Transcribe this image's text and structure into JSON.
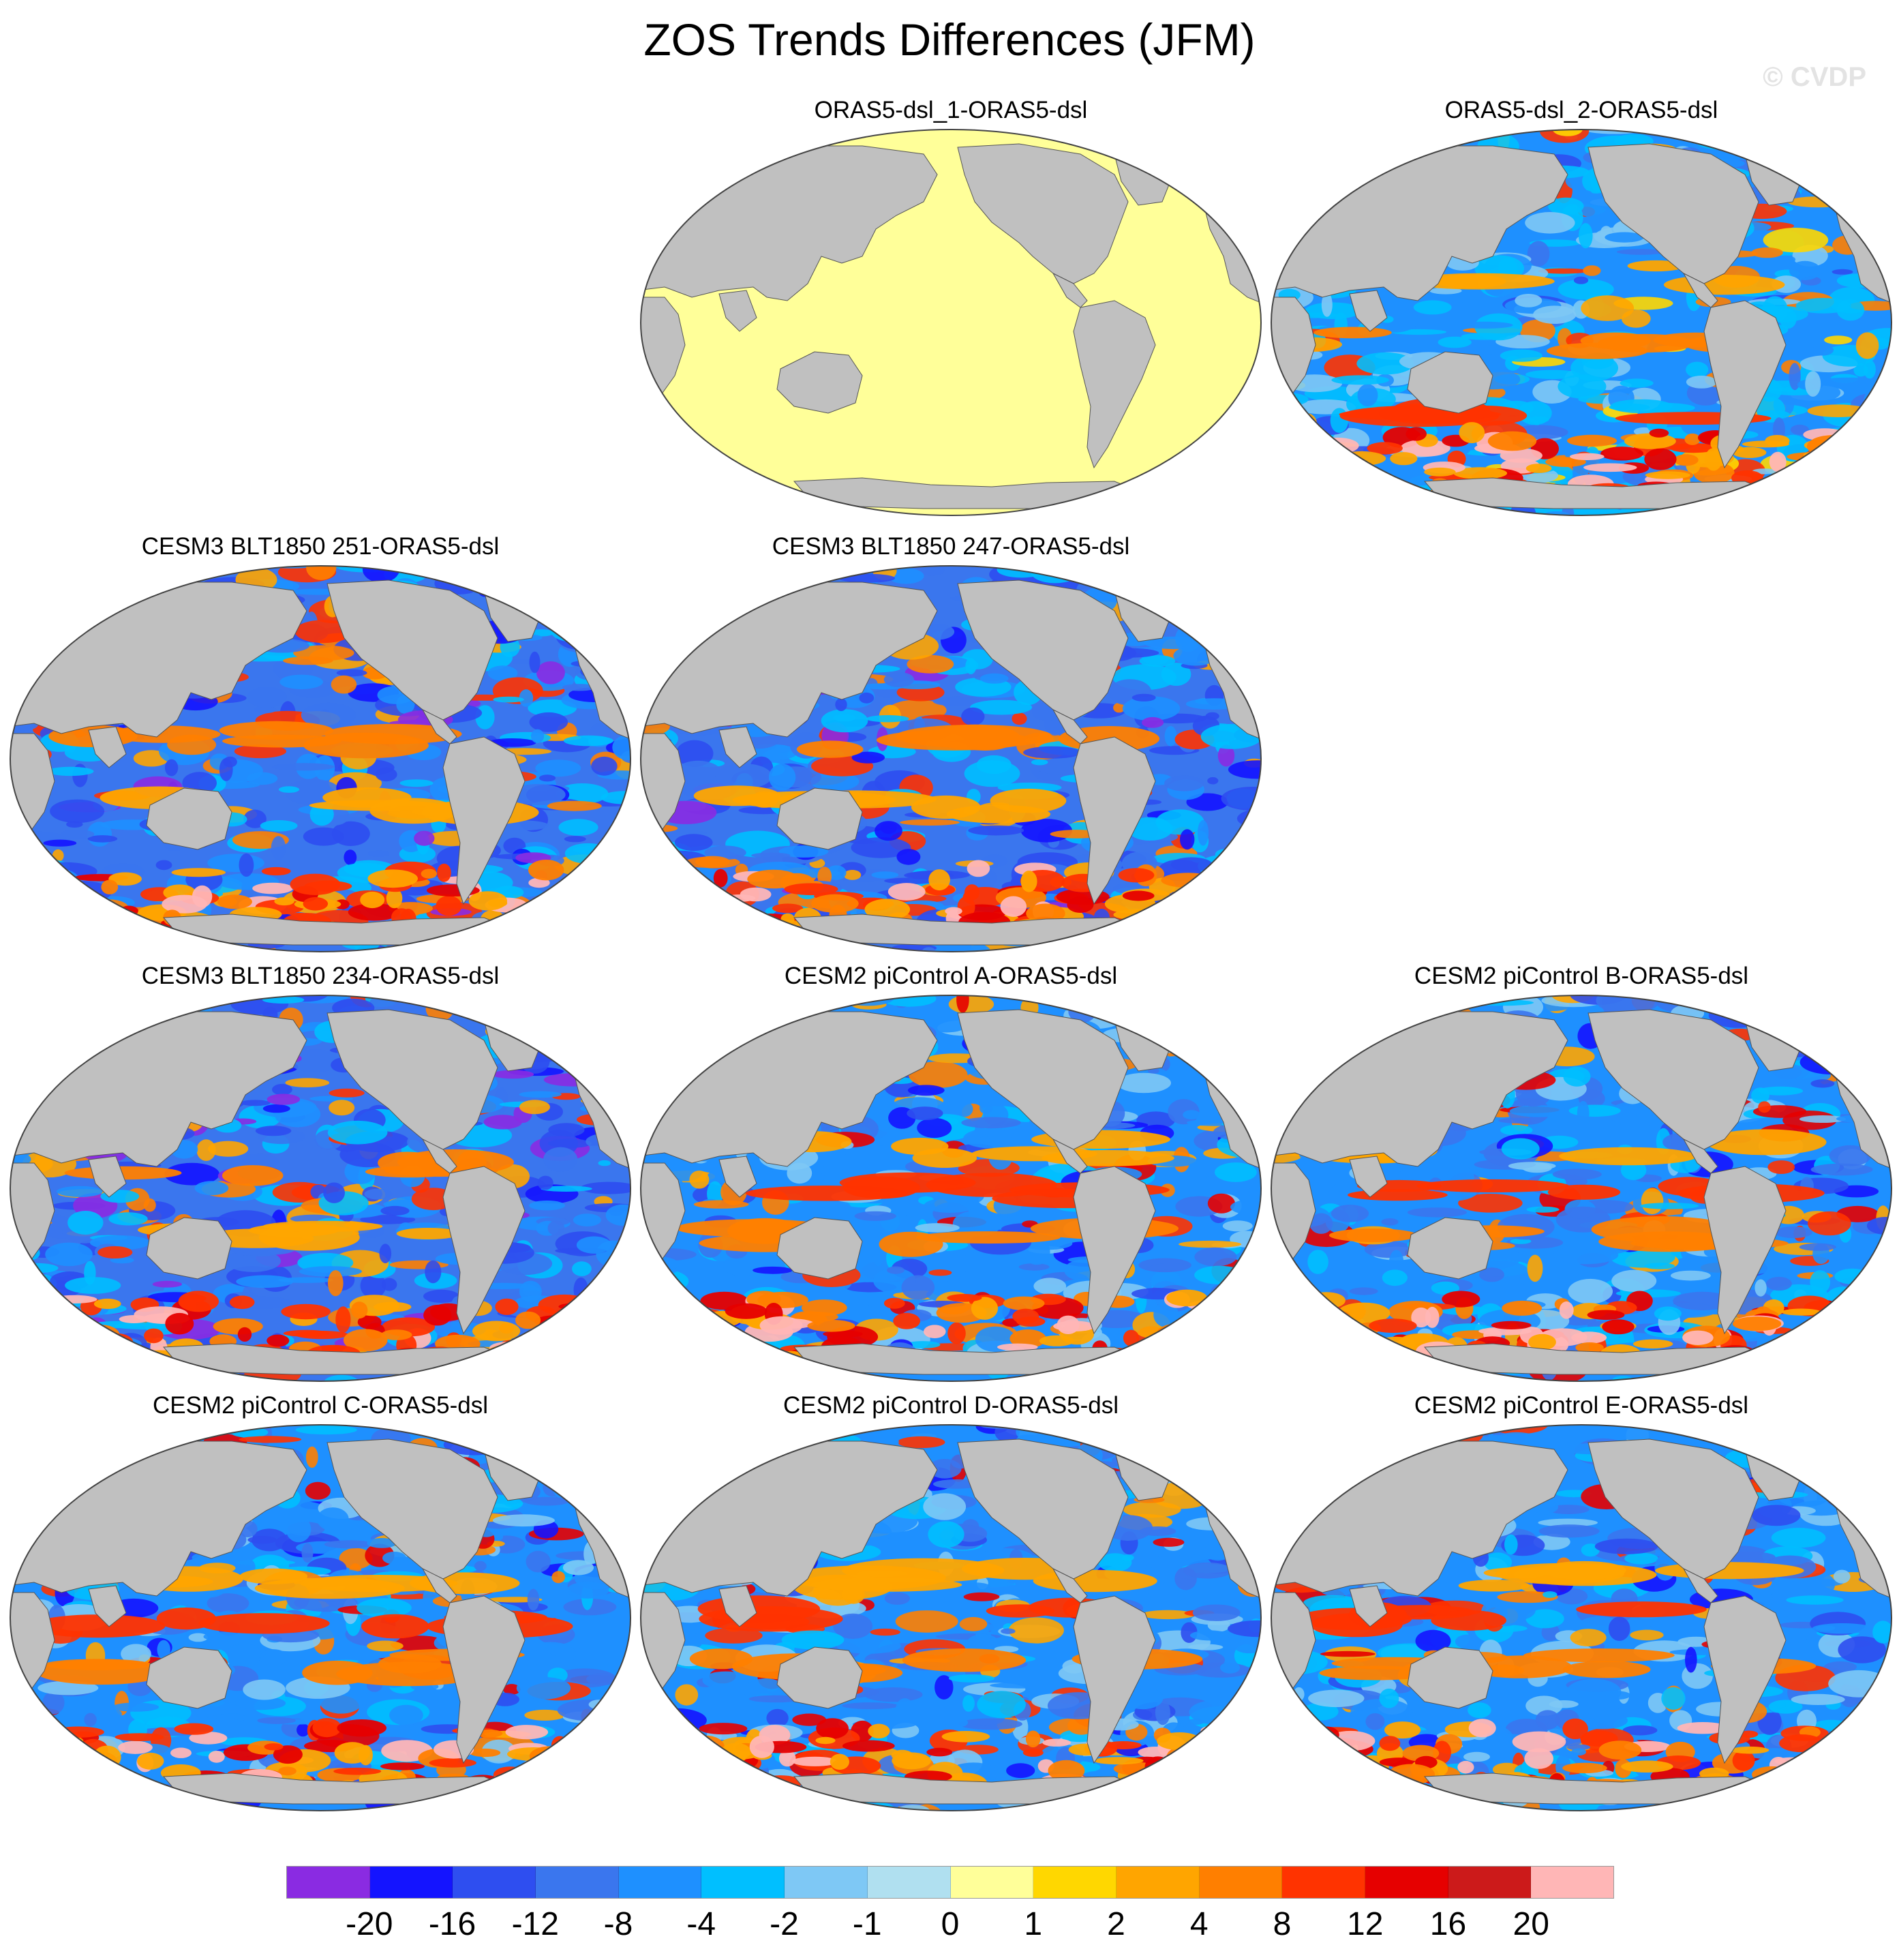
{
  "figure": {
    "title": "ZOS Trends Differences (JFM)",
    "credit": "© CVDP"
  },
  "map_colors": {
    "land": "#c0c0c0",
    "missing": "#ffffff",
    "outline": "#444444"
  },
  "panels": [
    {
      "title": "ORAS5-dsl_1-ORAS5-dsl",
      "pattern": "uniform"
    },
    {
      "title": "ORAS5-dsl_2-ORAS5-dsl",
      "pattern": "mixed"
    },
    {
      "title": "CESM3 BLT1850 251-ORAS5-dsl",
      "pattern": "blue-dominant"
    },
    {
      "title": "CESM3 BLT1850 247-ORAS5-dsl",
      "pattern": "blue-dominant"
    },
    {
      "title": "CESM3 BLT1850 234-ORAS5-dsl",
      "pattern": "blue-dominant"
    },
    {
      "title": "CESM2 piControl A-ORAS5-dsl",
      "pattern": "warm-equatorial"
    },
    {
      "title": "CESM2 piControl B-ORAS5-dsl",
      "pattern": "warm-equatorial"
    },
    {
      "title": "CESM2 piControl C-ORAS5-dsl",
      "pattern": "warm-equatorial"
    },
    {
      "title": "CESM2 piControl D-ORAS5-dsl",
      "pattern": "warm-equatorial"
    },
    {
      "title": "CESM2 piControl E-ORAS5-dsl",
      "pattern": "warm-equatorial"
    }
  ],
  "colorbar": {
    "colors": [
      "#8a2be2",
      "#1414ff",
      "#2e4ef0",
      "#3a76ee",
      "#1e90ff",
      "#00bfff",
      "#7ec8f5",
      "#b0e0f0",
      "#ffff99",
      "#ffd700",
      "#ffa500",
      "#ff7f00",
      "#ff3300",
      "#e60000",
      "#cc1a1a",
      "#ffb6b6"
    ],
    "labels": [
      "-20",
      "-16",
      "-12",
      "-8",
      "-4",
      "-2",
      "-1",
      "0",
      "1",
      "2",
      "4",
      "8",
      "12",
      "16",
      "20"
    ]
  }
}
